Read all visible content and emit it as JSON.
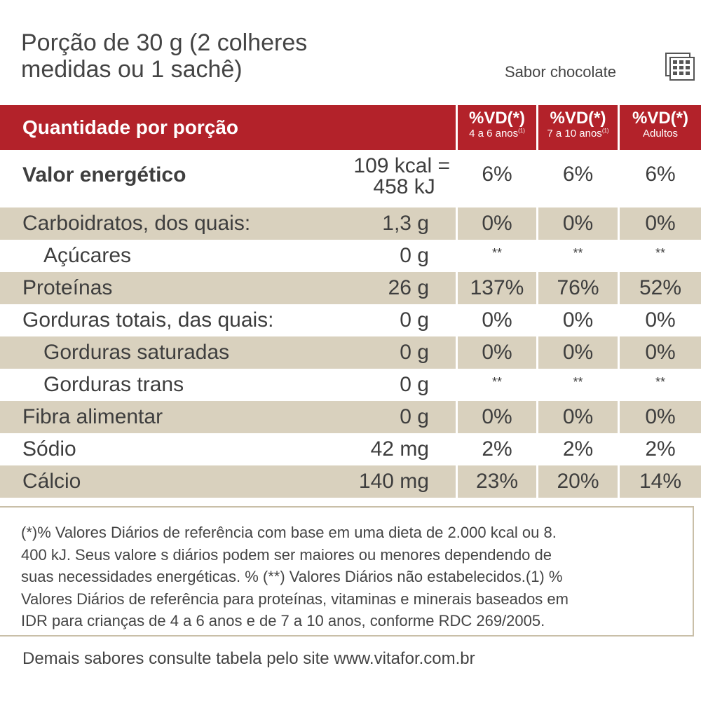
{
  "serving": {
    "line1": "Porção de 30 g (2 colheres",
    "line2": "medidas ou 1 sachê)"
  },
  "flavor": "Sabor chocolate",
  "flavor_icon": "chocolate-bar-icon",
  "colors": {
    "header_red": "#b3222a",
    "row_shade": "#d9d1be",
    "border": "#c9bfa8"
  },
  "table": {
    "header": {
      "label": "Quantidade por porção",
      "vd": [
        {
          "top": "%VD(*)",
          "sub": "4 a 6 anos",
          "sup": "(1)"
        },
        {
          "top": "%VD(*)",
          "sub": "7 a 10 anos",
          "sup": "(1)"
        },
        {
          "top": "%VD(*)",
          "sub": "Adultos",
          "sup": ""
        }
      ]
    },
    "energy": {
      "label": "Valor energético",
      "amount_line1": "109 kcal =",
      "amount_line2": "458 kJ",
      "vd": [
        "6%",
        "6%",
        "6%"
      ]
    },
    "rows": [
      {
        "label": "Carboidratos, dos quais:",
        "amount": "1,3 g",
        "vd": [
          "0%",
          "0%",
          "0%"
        ]
      },
      {
        "label": "Açúcares",
        "amount": "0 g",
        "vd": [
          "**",
          "**",
          "**"
        ]
      },
      {
        "label": "Proteínas",
        "amount": "26 g",
        "vd": [
          "137%",
          "76%",
          "52%"
        ]
      },
      {
        "label": "Gorduras totais, das quais:",
        "amount": "0 g",
        "vd": [
          "0%",
          "0%",
          "0%"
        ]
      },
      {
        "label": "Gorduras saturadas",
        "amount": "0 g",
        "vd": [
          "0%",
          "0%",
          "0%"
        ]
      },
      {
        "label": "Gorduras trans",
        "amount": "0 g",
        "vd": [
          "**",
          "**",
          "**"
        ]
      },
      {
        "label": "Fibra alimentar",
        "amount": "0 g",
        "vd": [
          "0%",
          "0%",
          "0%"
        ]
      },
      {
        "label": "Sódio",
        "amount": "42 mg",
        "vd": [
          "2%",
          "2%",
          "2%"
        ]
      },
      {
        "label": "Cálcio",
        "amount": "140 mg",
        "vd": [
          "23%",
          "20%",
          "14%"
        ]
      }
    ]
  },
  "footnote": {
    "lines": [
      "(*)% Valores Diários de referência com base em uma dieta de 2.000 kcal ou 8.",
      "400 kJ. Seus valore s diários podem ser maiores ou menores dependendo de",
      "suas necessidades energéticas. % (**) Valores Diários não estabelecidos.(1) %",
      "Valores Diários de referência para proteínas, vitaminas e minerais baseados em",
      "IDR para crianças de 4 a 6 anos e de 7 a 10 anos, conforme RDC 269/2005."
    ]
  },
  "site_note": "Demais sabores consulte tabela pelo site www.vitafor.com.br"
}
